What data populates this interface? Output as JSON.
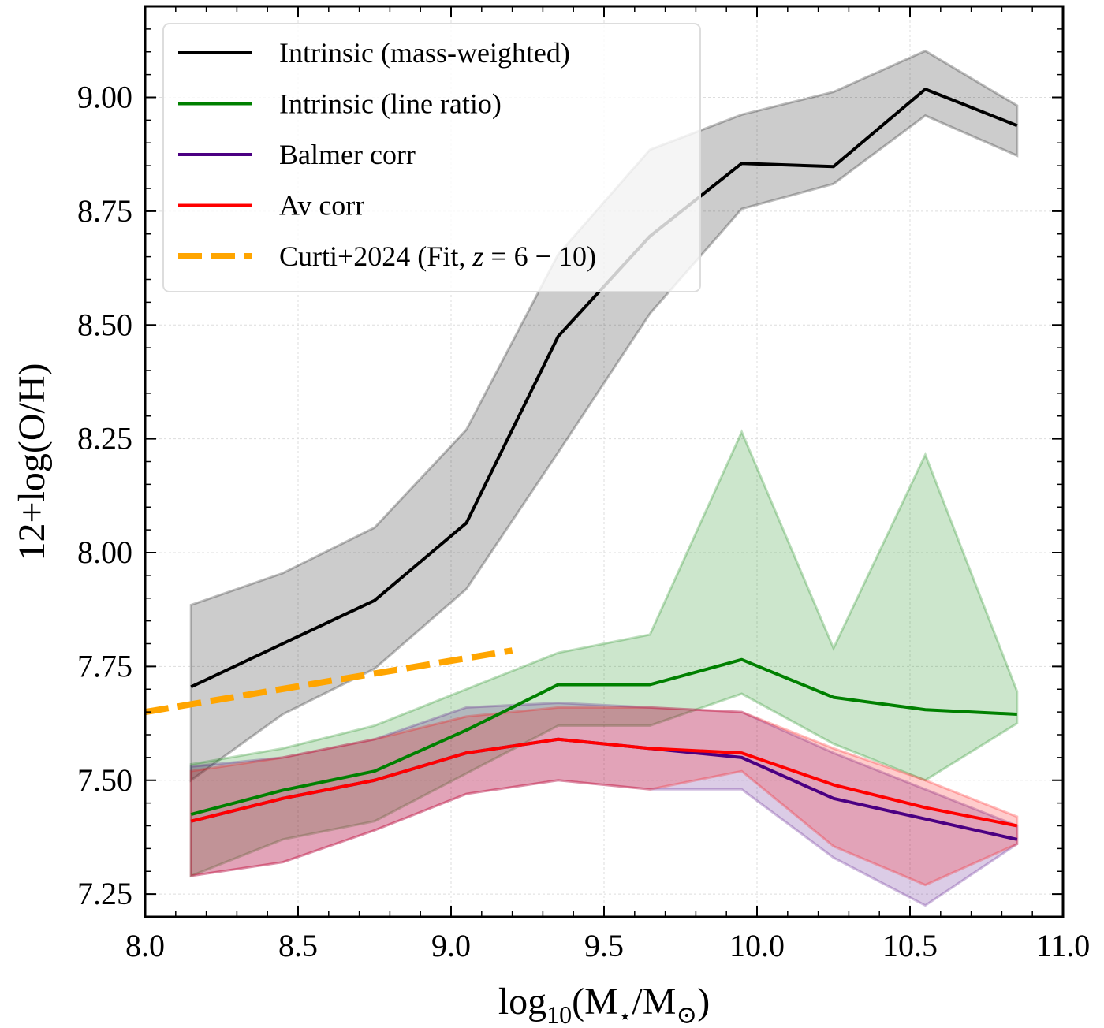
{
  "colors": {
    "intrinsic_mass": "#000000",
    "intrinsic_line": "#008000",
    "balmer": "#4b0082",
    "av": "#ff0000",
    "curti": "#ffa500",
    "grid": "#dddddd"
  },
  "chart_data": {
    "type": "line",
    "xlabel_main": "log",
    "xlabel_sub": "10",
    "xlabel_tail": "(M",
    "xlabel_star": "⋆",
    "xlabel_mid": "/M",
    "xlabel_sun": "⊙",
    "xlabel_end": ")",
    "ylabel": "12+log(O/H)",
    "xlim": [
      8.0,
      11.0
    ],
    "ylim": [
      7.2,
      9.2
    ],
    "xticks": [
      "8.0",
      "8.5",
      "9.0",
      "9.5",
      "10.0",
      "10.5",
      "11.0"
    ],
    "yticks": [
      "7.25",
      "7.50",
      "7.75",
      "8.00",
      "8.25",
      "8.50",
      "8.75",
      "9.00"
    ],
    "grid": true,
    "legend_position": "top-left",
    "x": [
      8.15,
      8.45,
      8.75,
      9.05,
      9.35,
      9.65,
      9.95,
      10.25,
      10.55,
      10.85
    ],
    "series": [
      {
        "name": "Intrinsic (mass-weighted)",
        "color_key": "intrinsic_mass",
        "style": "solid",
        "values": [
          7.705,
          7.8,
          7.895,
          8.065,
          8.475,
          8.695,
          8.855,
          8.848,
          9.018,
          8.938
        ],
        "lower": [
          7.5,
          7.645,
          7.745,
          7.92,
          8.22,
          8.525,
          8.755,
          8.81,
          8.96,
          8.872
        ],
        "upper": [
          7.885,
          7.955,
          8.055,
          8.27,
          8.655,
          8.885,
          8.962,
          9.012,
          9.102,
          8.982
        ]
      },
      {
        "name": "Intrinsic (line ratio)",
        "color_key": "intrinsic_line",
        "style": "solid",
        "values": [
          7.425,
          7.478,
          7.52,
          7.61,
          7.71,
          7.71,
          7.765,
          7.682,
          7.655,
          7.645
        ],
        "lower": [
          7.29,
          7.37,
          7.41,
          7.515,
          7.62,
          7.62,
          7.69,
          7.58,
          7.5,
          7.625
        ],
        "upper": [
          7.535,
          7.57,
          7.62,
          7.7,
          7.78,
          7.82,
          8.265,
          7.79,
          8.215,
          7.695
        ]
      },
      {
        "name": "Balmer corr",
        "color_key": "balmer",
        "style": "solid",
        "values": [
          7.41,
          7.46,
          7.5,
          7.56,
          7.59,
          7.57,
          7.55,
          7.46,
          7.415,
          7.37
        ],
        "lower": [
          7.29,
          7.32,
          7.39,
          7.47,
          7.5,
          7.48,
          7.48,
          7.33,
          7.225,
          7.36
        ],
        "upper": [
          7.53,
          7.55,
          7.59,
          7.66,
          7.67,
          7.66,
          7.65,
          7.56,
          7.48,
          7.4
        ]
      },
      {
        "name": "Av corr",
        "color_key": "av",
        "style": "solid",
        "values": [
          7.41,
          7.46,
          7.5,
          7.56,
          7.59,
          7.57,
          7.56,
          7.49,
          7.44,
          7.4
        ],
        "lower": [
          7.29,
          7.32,
          7.39,
          7.47,
          7.5,
          7.48,
          7.52,
          7.355,
          7.27,
          7.36
        ],
        "upper": [
          7.52,
          7.55,
          7.59,
          7.64,
          7.66,
          7.66,
          7.65,
          7.57,
          7.5,
          7.42
        ]
      },
      {
        "name": "Curti+2024 (Fit, ",
        "name_math": "z",
        "name_tail": " = 6 − 10)",
        "color_key": "curti",
        "style": "dashed",
        "x": [
          8.0,
          9.2
        ],
        "values": [
          7.65,
          7.785
        ]
      }
    ]
  }
}
